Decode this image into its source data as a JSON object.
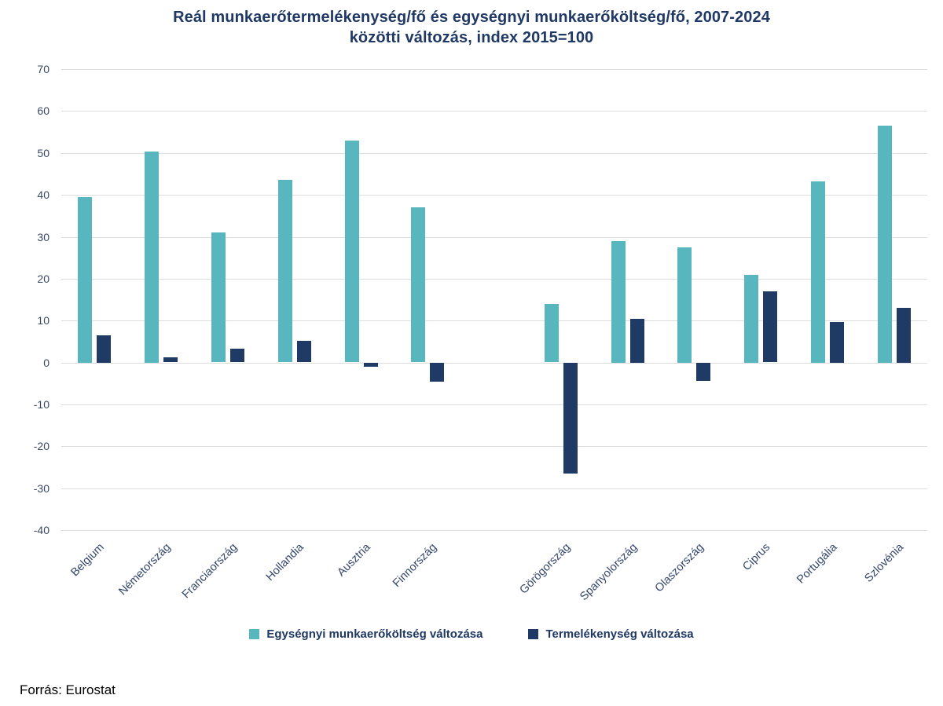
{
  "title": {
    "lines": [
      "Reál munkaerőtermelékenység/fő és egységnyi munkaerőköltség/fő, 2007-2024",
      "közötti változás, index 2015=100"
    ]
  },
  "footer": {
    "source": "Forrás: Eurostat"
  },
  "colors": {
    "title_text": "#1F3864",
    "axis_label_text": "#3A4A66",
    "gridline": "#DDDDDD",
    "background": "#FFFFFF",
    "teal_series": "#58B6BE",
    "navy_series": "#1F3A64"
  },
  "chart_data": {
    "type": "bar",
    "title": "Reál munkaerőtermelékenység/fő és egységnyi munkaerőköltség/fő, 2007-2024 közötti változás, index 2015=100",
    "xlabel": "",
    "ylabel": "",
    "categories": [
      "Belgium",
      "Németország",
      "Franciaország",
      "Hollandia",
      "Ausztria",
      "Finnország",
      "Görögország",
      "Spanyolország",
      "Olaszország",
      "Ciprus",
      "Portugália",
      "Szlovénia"
    ],
    "series": [
      {
        "name": "Egységnyi munkaerőköltség változása",
        "color": "#58B6BE",
        "values": [
          39.5,
          50.4,
          31.0,
          43.5,
          53.0,
          37.0,
          14.0,
          29.0,
          27.5,
          21.0,
          43.3,
          56.5
        ]
      },
      {
        "name": "Termelékenység változása",
        "color": "#1F3A64",
        "values": [
          6.5,
          1.3,
          3.3,
          5.2,
          -1.0,
          -4.6,
          -26.5,
          10.5,
          -4.4,
          17.0,
          9.7,
          13.0
        ]
      }
    ],
    "ylim": [
      -40,
      70
    ],
    "ytick_step": 10,
    "grid": true,
    "legend_position": "bottom",
    "gap_after_category": "Finnország"
  }
}
